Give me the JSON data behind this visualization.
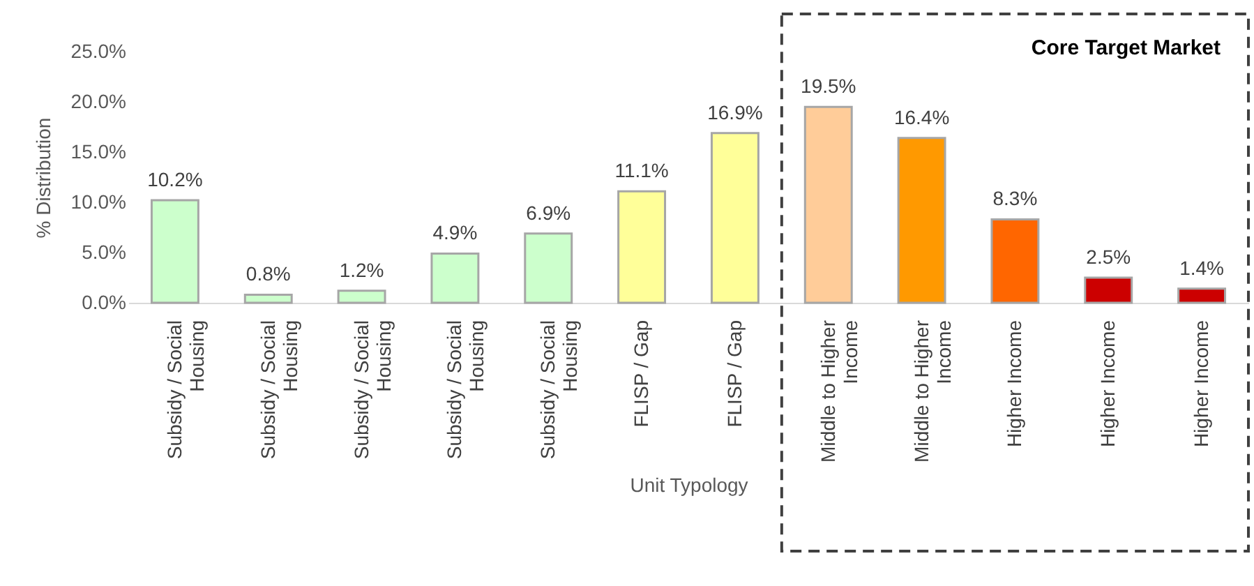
{
  "chart_data": {
    "type": "bar",
    "xlabel": "Unit Typology",
    "ylabel": "% Distribution",
    "categories": [
      "Subsidy / Social Housing",
      "Subsidy / Social Housing",
      "Subsidy / Social Housing",
      "Subsidy / Social Housing",
      "Subsidy / Social Housing",
      "FLISP / Gap",
      "FLISP / Gap",
      "Middle to Higher Income",
      "Middle to Higher Income",
      "Higher Income",
      "Higher Income",
      "Higher Income"
    ],
    "values": [
      10.2,
      0.8,
      1.2,
      4.9,
      6.9,
      11.1,
      16.9,
      19.5,
      16.4,
      8.3,
      2.5,
      1.4
    ],
    "colors": [
      "#ccffcc",
      "#ccffcc",
      "#ccffcc",
      "#ccffcc",
      "#ccffcc",
      "#ffff99",
      "#ffff99",
      "#ffcc99",
      "#ff9900",
      "#ff6600",
      "#cc0000",
      "#cc0000"
    ],
    "value_labels": [
      "10.2%",
      "0.8%",
      "1.2%",
      "4.9%",
      "6.9%",
      "11.1%",
      "16.9%",
      "19.5%",
      "16.4%",
      "8.3%",
      "2.5%",
      "1.4%"
    ],
    "ylim": [
      0,
      25
    ],
    "yticks": [
      {
        "value": 0,
        "label": "0.0%"
      },
      {
        "value": 5,
        "label": "5.0%"
      },
      {
        "value": 10,
        "label": "10.0%"
      },
      {
        "value": 15,
        "label": "15.0%"
      },
      {
        "value": 20,
        "label": "20.0%"
      },
      {
        "value": 25,
        "label": "25.0%"
      }
    ],
    "annotations": [
      "Core Target Market"
    ],
    "grid": false
  }
}
